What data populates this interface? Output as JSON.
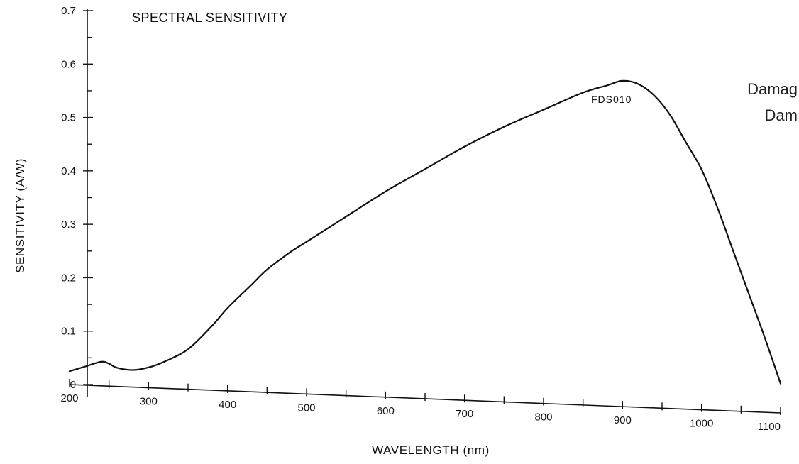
{
  "chart_data": {
    "type": "line",
    "title": "SPECTRAL SENSITIVITY",
    "xlabel": "WAVELENGTH (nm)",
    "ylabel": "SENSITIVITY (A/W)",
    "xlim": [
      200,
      1100
    ],
    "ylim": [
      0,
      0.7
    ],
    "x_ticks": [
      200,
      300,
      400,
      500,
      600,
      700,
      800,
      900,
      1000,
      1100
    ],
    "y_ticks": [
      0,
      0.1,
      0.2,
      0.3,
      0.4,
      0.5,
      0.6,
      0.7
    ],
    "x_tick_labels": [
      "200",
      "300",
      "400",
      "500",
      "600",
      "700",
      "800",
      "900",
      "1000",
      "1100"
    ],
    "y_tick_labels": [
      "0",
      "0.1",
      "0.2",
      "0.3",
      "0.4",
      "0.5",
      "0.6",
      "0.7"
    ],
    "grid": false,
    "series": [
      {
        "name": "FDS010",
        "x": [
          200,
          220,
          240,
          250,
          260,
          280,
          300,
          320,
          350,
          380,
          400,
          430,
          450,
          480,
          500,
          550,
          600,
          650,
          700,
          750,
          800,
          850,
          880,
          900,
          920,
          940,
          960,
          980,
          1000,
          1020,
          1040,
          1060,
          1080,
          1100
        ],
        "y": [
          0.025,
          0.035,
          0.045,
          0.042,
          0.035,
          0.032,
          0.038,
          0.05,
          0.075,
          0.12,
          0.155,
          0.2,
          0.23,
          0.265,
          0.285,
          0.335,
          0.385,
          0.43,
          0.475,
          0.515,
          0.55,
          0.585,
          0.6,
          0.61,
          0.605,
          0.585,
          0.55,
          0.5,
          0.45,
          0.38,
          0.3,
          0.22,
          0.14,
          0.055
        ]
      }
    ],
    "annotations": [
      "Damag",
      "Dam"
    ]
  }
}
